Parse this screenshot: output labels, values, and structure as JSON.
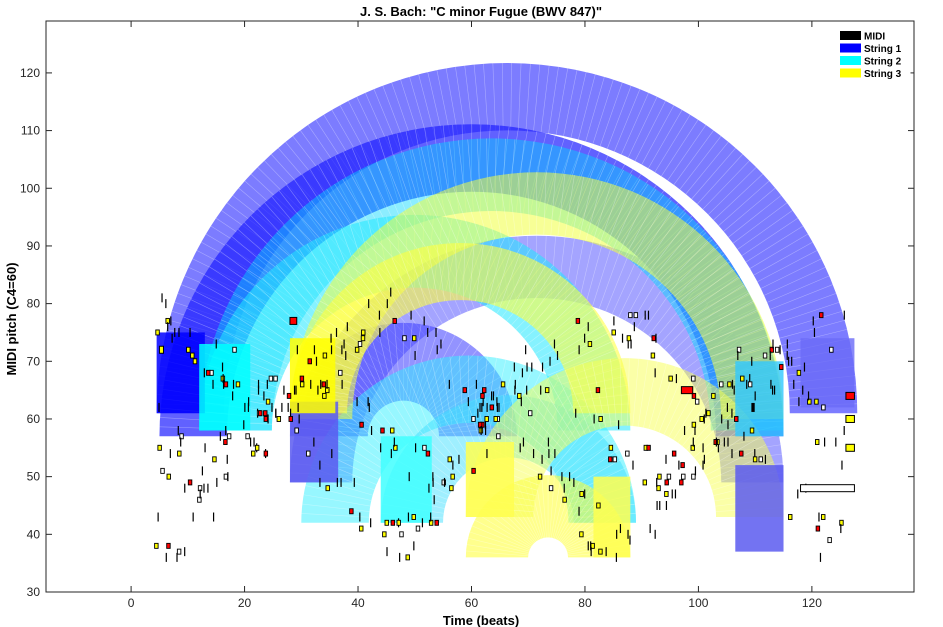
{
  "chart_data": {
    "type": "scatter",
    "title": "J. S. Bach: \"C minor Fugue (BWV 847)\"",
    "xlabel": "Time (beats)",
    "ylabel": "MIDI pitch (C4=60)",
    "xlim": [
      -15,
      138
    ],
    "ylim": [
      30,
      129
    ],
    "xticks": [
      0,
      20,
      40,
      60,
      80,
      100,
      120
    ],
    "yticks": [
      30,
      40,
      50,
      60,
      70,
      80,
      90,
      100,
      110,
      120
    ],
    "grid": false,
    "legend_position": "top-right",
    "legend": [
      {
        "name": "MIDI",
        "color": "#000000"
      },
      {
        "name": "String 1",
        "color": "#0000ff"
      },
      {
        "name": "String 2",
        "color": "#00ffff"
      },
      {
        "name": "String 3",
        "color": "#ffff00"
      }
    ],
    "arcs": [
      {
        "string": "String 1",
        "x1": 4.5,
        "x2": 128,
        "ybase": 61,
        "lo": 61,
        "hi": 74,
        "color": "#4a4aff",
        "opacity": 0.72
      },
      {
        "string": "String 1",
        "x1": 5,
        "x2": 115,
        "ybase": 57,
        "lo": 61,
        "hi": 74,
        "color": "#1e1eff",
        "opacity": 0.7
      },
      {
        "string": "String 1",
        "x1": 28,
        "x2": 115,
        "ybase": 49,
        "lo": 70,
        "hi": 82,
        "color": "#5a5aff",
        "opacity": 0.55
      },
      {
        "string": "String 1",
        "x1": 28,
        "x2": 68,
        "ybase": 57,
        "lo": 49,
        "hi": 64,
        "color": "#3a3aff",
        "opacity": 0.55
      },
      {
        "string": "String 2",
        "x1": 12,
        "x2": 115,
        "ybase": 58,
        "lo": 58,
        "hi": 72,
        "color": "#00d8ff",
        "opacity": 0.45
      },
      {
        "string": "String 2",
        "x1": 12,
        "x2": 88,
        "ybase": 58,
        "lo": 58,
        "hi": 72,
        "color": "#20e8ff",
        "opacity": 0.55
      },
      {
        "string": "String 2",
        "x1": 30,
        "x2": 89,
        "ybase": 42,
        "lo": 63,
        "hi": 76,
        "color": "#30f0ff",
        "opacity": 0.5
      },
      {
        "string": "String 2",
        "x1": 44,
        "x2": 89,
        "ybase": 42,
        "lo": 52,
        "hi": 64,
        "color": "#40e0ff",
        "opacity": 0.5
      },
      {
        "string": "String 3",
        "x1": 28,
        "x2": 115,
        "ybase": 60,
        "lo": 70,
        "hi": 82,
        "color": "#f0ff40",
        "opacity": 0.55
      },
      {
        "string": "String 3",
        "x1": 28,
        "x2": 88,
        "ybase": 61,
        "lo": 62,
        "hi": 73,
        "color": "#ffff40",
        "opacity": 0.6
      },
      {
        "string": "String 3",
        "x1": 59,
        "x2": 88,
        "ybase": 36,
        "lo": 48,
        "hi": 60,
        "color": "#ffff30",
        "opacity": 0.55
      },
      {
        "string": "String 3",
        "x1": 59,
        "x2": 115,
        "ybase": 43,
        "lo": 53,
        "hi": 66,
        "color": "#f8ff50",
        "opacity": 0.5
      }
    ],
    "bands": [
      {
        "string": "String 1",
        "x1": 4.5,
        "x2": 13,
        "y1": 61,
        "y2": 75,
        "color": "#0000ff",
        "opacity": 0.85
      },
      {
        "string": "String 1",
        "x1": 28,
        "x2": 36.5,
        "y1": 49,
        "y2": 63,
        "color": "#5a5af0",
        "opacity": 0.85
      },
      {
        "string": "String 1",
        "x1": 106.5,
        "x2": 115,
        "y1": 37,
        "y2": 52,
        "color": "#5a5af0",
        "opacity": 0.85
      },
      {
        "string": "String 1",
        "x1": 118,
        "x2": 127.5,
        "y1": 62,
        "y2": 74,
        "color": "#6a6af8",
        "opacity": 0.8
      },
      {
        "string": "String 2",
        "x1": 12,
        "x2": 21,
        "y1": 58,
        "y2": 73,
        "color": "#00ffff",
        "opacity": 0.85
      },
      {
        "string": "String 2",
        "x1": 44,
        "x2": 53,
        "y1": 42,
        "y2": 57,
        "color": "#40ffff",
        "opacity": 0.85
      },
      {
        "string": "String 2",
        "x1": 106.5,
        "x2": 115,
        "y1": 57,
        "y2": 70,
        "color": "#30c8ff",
        "opacity": 0.8
      },
      {
        "string": "String 3",
        "x1": 28,
        "x2": 36,
        "y1": 61,
        "y2": 74,
        "color": "#ffff00",
        "opacity": 0.85
      },
      {
        "string": "String 3",
        "x1": 59,
        "x2": 67.5,
        "y1": 43,
        "y2": 56,
        "color": "#ffff50",
        "opacity": 0.85
      },
      {
        "string": "String 3",
        "x1": 81.5,
        "x2": 88,
        "y1": 36,
        "y2": 50,
        "color": "#ffff50",
        "opacity": 0.85
      }
    ],
    "notes_seed": 847,
    "notes_count": 430,
    "sample_notes": [
      {
        "x": 5,
        "y": 72,
        "dur": 0.5,
        "color": "yellow"
      },
      {
        "x": 28,
        "y": 77,
        "dur": 1.2,
        "color": "red"
      },
      {
        "x": 97,
        "y": 65,
        "dur": 2.0,
        "color": "red"
      },
      {
        "x": 118,
        "y": 48,
        "dur": 9.5,
        "color": "white"
      },
      {
        "x": 126,
        "y": 64,
        "dur": 1.5,
        "color": "red"
      },
      {
        "x": 126,
        "y": 60,
        "dur": 1.5,
        "color": "yellow"
      },
      {
        "x": 126,
        "y": 55,
        "dur": 1.5,
        "color": "yellow"
      }
    ]
  }
}
